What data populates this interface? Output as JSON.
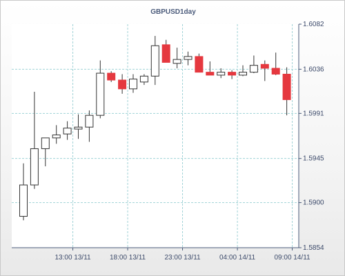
{
  "chart_data": {
    "type": "candlestick",
    "title": "GBPUSD1day",
    "ylim": [
      1.5854,
      1.6082
    ],
    "y_ticks": [
      "1.6082",
      "1.6036",
      "1.5991",
      "1.5945",
      "1.5900",
      "1.5854"
    ],
    "x_ticks": [
      {
        "label": "13:00 13/11",
        "index": 4.5
      },
      {
        "label": "18:00 13/11",
        "index": 9.5
      },
      {
        "label": "23:00 13/11",
        "index": 14.5
      },
      {
        "label": "04:00 14/11",
        "index": 19.5
      },
      {
        "label": "09:00 14/11",
        "index": 24.5
      }
    ],
    "grid": true,
    "up_color": "#ffffff",
    "down_color": "#e5383f",
    "candles": [
      {
        "o": 1.5886,
        "h": 1.594,
        "l": 1.5882,
        "c": 1.5918
      },
      {
        "o": 1.5918,
        "h": 1.6013,
        "l": 1.5914,
        "c": 1.5955
      },
      {
        "o": 1.5955,
        "h": 1.5966,
        "l": 1.5937,
        "c": 1.5966
      },
      {
        "o": 1.5966,
        "h": 1.5979,
        "l": 1.596,
        "c": 1.5969
      },
      {
        "o": 1.597,
        "h": 1.5983,
        "l": 1.5964,
        "c": 1.5976
      },
      {
        "o": 1.5975,
        "h": 1.599,
        "l": 1.5965,
        "c": 1.5977
      },
      {
        "o": 1.5977,
        "h": 1.5994,
        "l": 1.5962,
        "c": 1.5989
      },
      {
        "o": 1.5989,
        "h": 1.6045,
        "l": 1.5986,
        "c": 1.6032
      },
      {
        "o": 1.6032,
        "h": 1.6034,
        "l": 1.6023,
        "c": 1.6025
      },
      {
        "o": 1.6025,
        "h": 1.6031,
        "l": 1.6011,
        "c": 1.6016
      },
      {
        "o": 1.6016,
        "h": 1.6031,
        "l": 1.6012,
        "c": 1.6026
      },
      {
        "o": 1.6023,
        "h": 1.6031,
        "l": 1.602,
        "c": 1.6029
      },
      {
        "o": 1.6029,
        "h": 1.607,
        "l": 1.602,
        "c": 1.606
      },
      {
        "o": 1.6061,
        "h": 1.6066,
        "l": 1.6043,
        "c": 1.6043
      },
      {
        "o": 1.6042,
        "h": 1.6058,
        "l": 1.6037,
        "c": 1.6046
      },
      {
        "o": 1.6046,
        "h": 1.6054,
        "l": 1.604,
        "c": 1.6049
      },
      {
        "o": 1.6049,
        "h": 1.6052,
        "l": 1.6033,
        "c": 1.6033
      },
      {
        "o": 1.6033,
        "h": 1.6044,
        "l": 1.603,
        "c": 1.603
      },
      {
        "o": 1.603,
        "h": 1.6037,
        "l": 1.6027,
        "c": 1.6033
      },
      {
        "o": 1.6033,
        "h": 1.6035,
        "l": 1.6026,
        "c": 1.603
      },
      {
        "o": 1.603,
        "h": 1.604,
        "l": 1.6029,
        "c": 1.6033
      },
      {
        "o": 1.6033,
        "h": 1.605,
        "l": 1.6032,
        "c": 1.604
      },
      {
        "o": 1.6041,
        "h": 1.6045,
        "l": 1.6024,
        "c": 1.6037
      },
      {
        "o": 1.6037,
        "h": 1.6053,
        "l": 1.603,
        "c": 1.6031
      },
      {
        "o": 1.6031,
        "h": 1.6038,
        "l": 1.5989,
        "c": 1.6005
      }
    ]
  }
}
